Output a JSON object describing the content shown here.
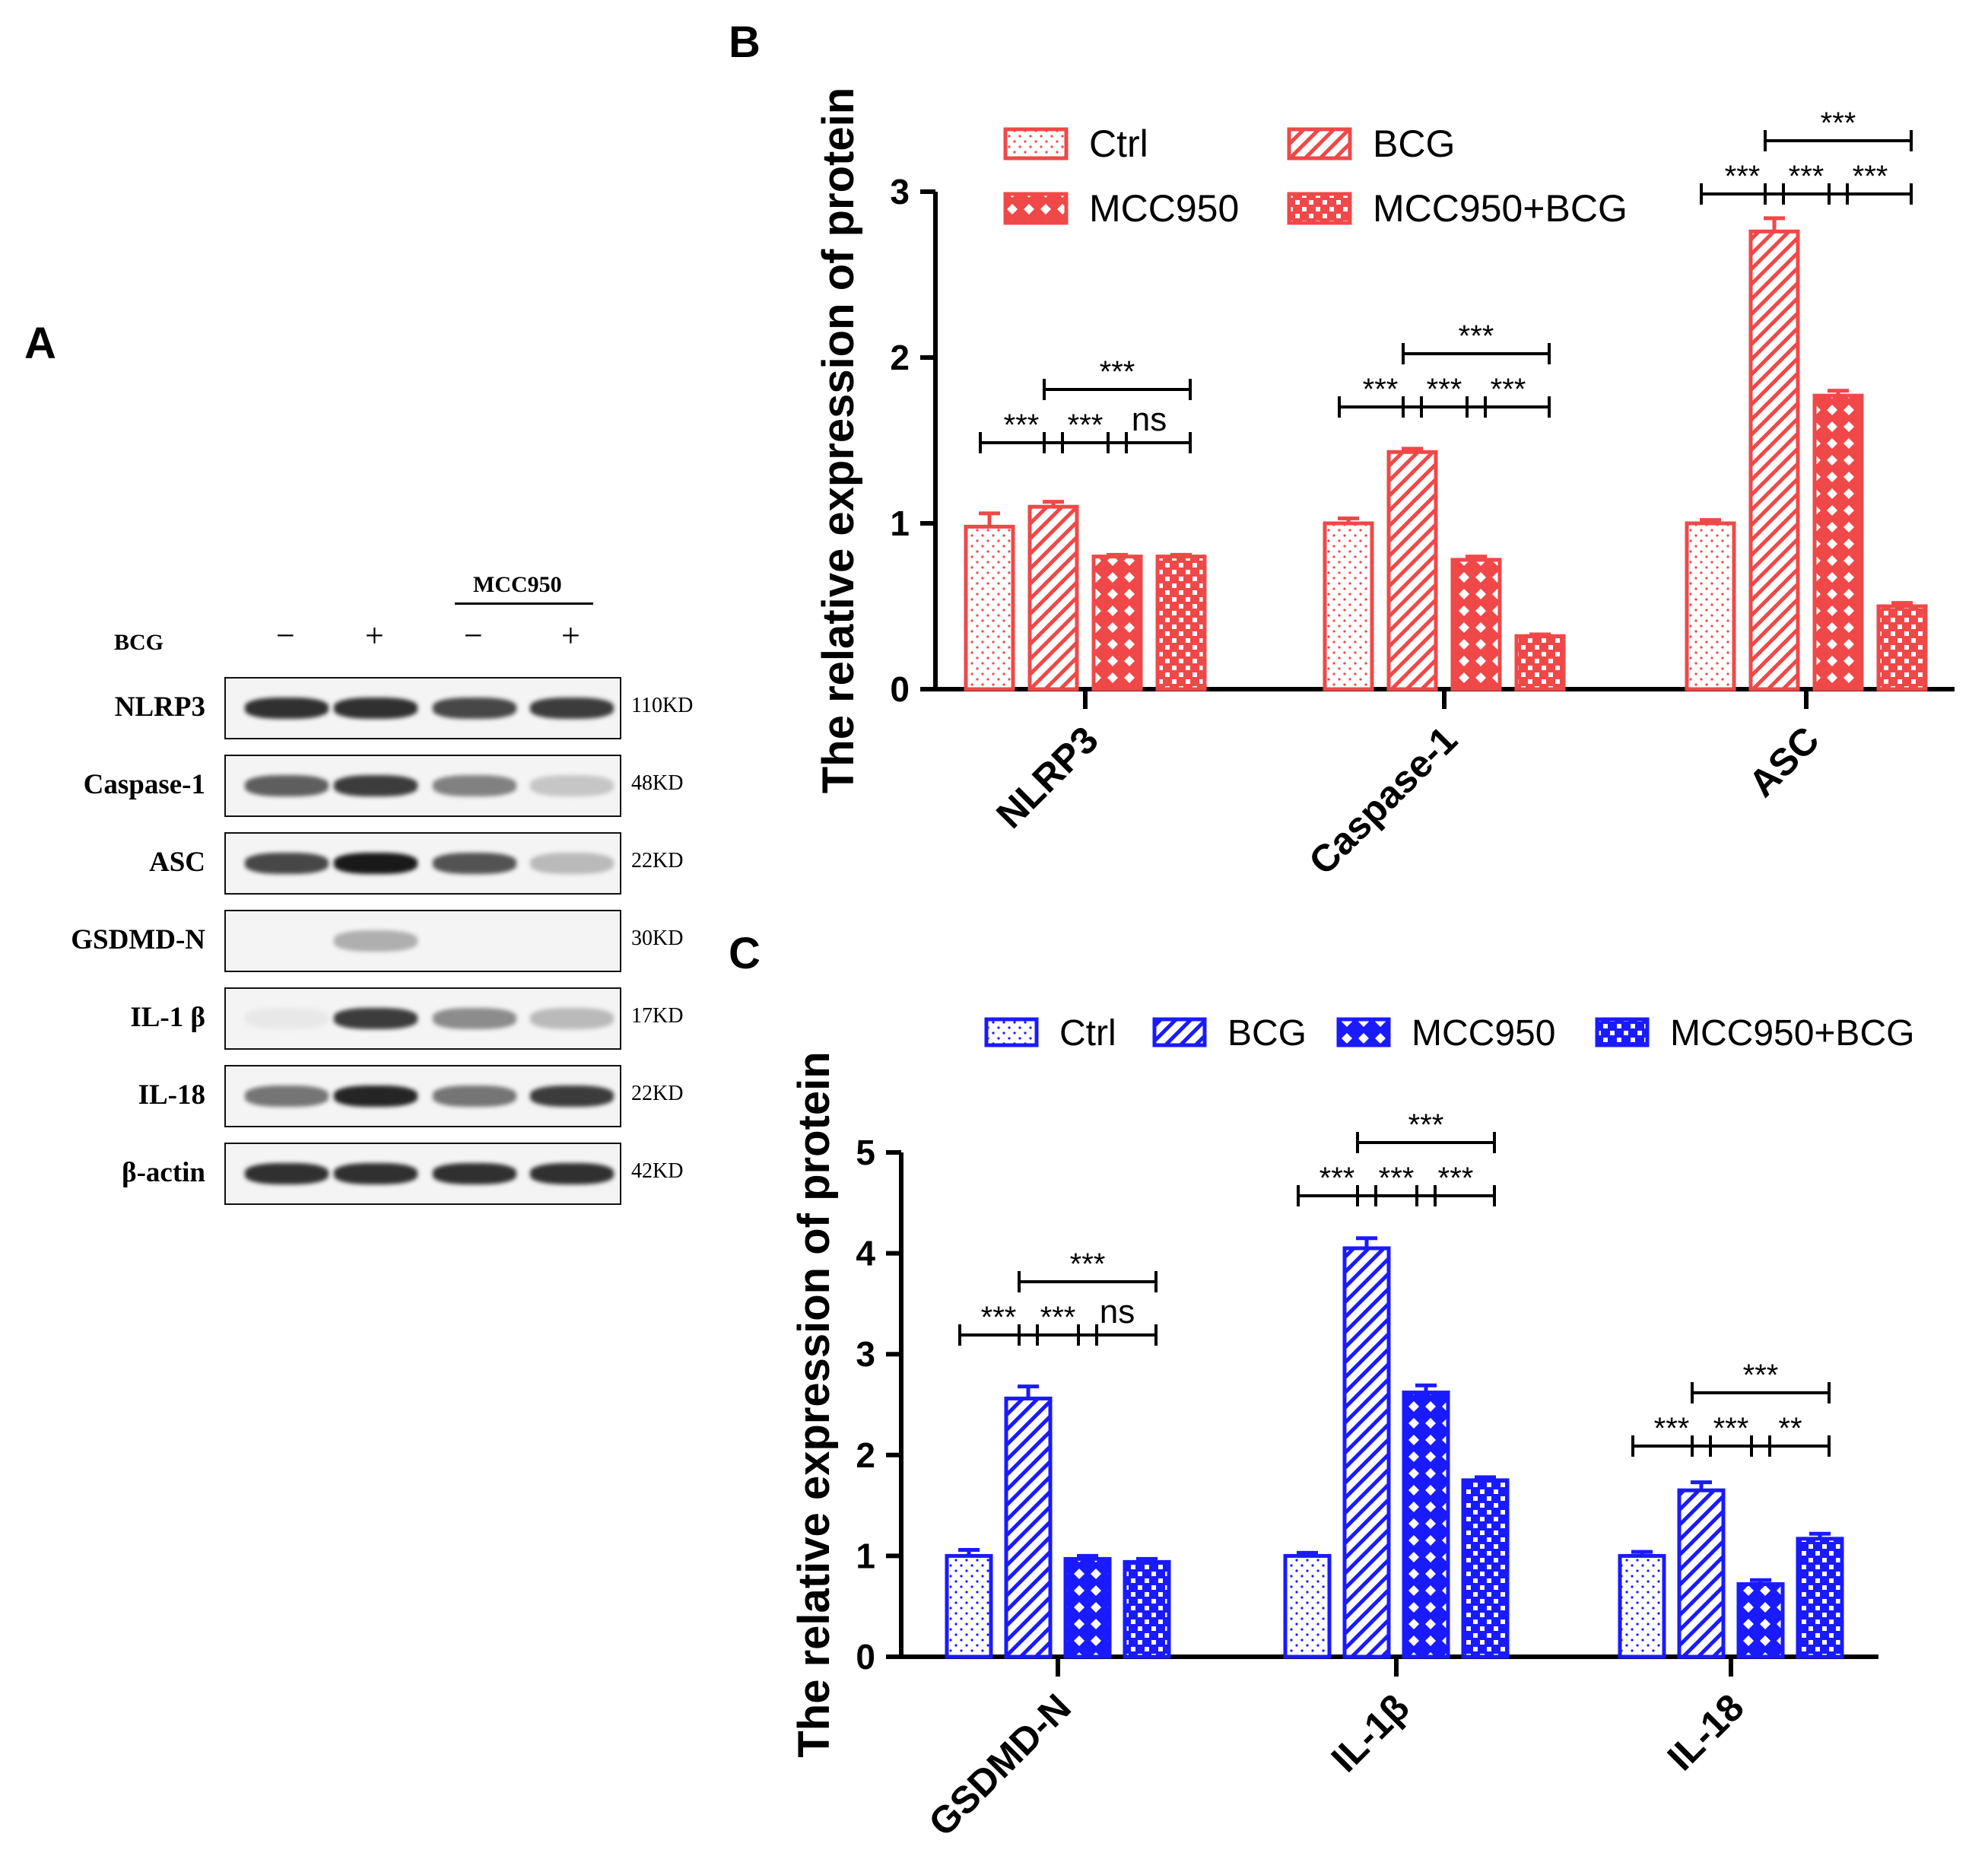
{
  "panels": {
    "a": "A",
    "b": "B",
    "c": "C"
  },
  "western_blot": {
    "treatment_label": "BCG",
    "inhibitor_label": "MCC950",
    "lane_signs": [
      "−",
      "+",
      "−",
      "+"
    ],
    "rows": [
      {
        "name": "NLRP3",
        "kd": "110KD",
        "intensity": [
          0.9,
          0.9,
          0.8,
          0.85
        ]
      },
      {
        "name": "Caspase-1",
        "kd": "48KD",
        "intensity": [
          0.7,
          0.85,
          0.55,
          0.25
        ]
      },
      {
        "name": "ASC",
        "kd": "22KD",
        "intensity": [
          0.8,
          1.0,
          0.75,
          0.3
        ]
      },
      {
        "name": "GSDMD-N",
        "kd": "30KD",
        "intensity": [
          0.0,
          0.35,
          0.0,
          0.0
        ]
      },
      {
        "name": "IL-1 β",
        "kd": "17KD",
        "intensity": [
          0.1,
          0.85,
          0.5,
          0.3
        ]
      },
      {
        "name": "IL-18",
        "kd": "22KD",
        "intensity": [
          0.6,
          0.95,
          0.6,
          0.85
        ]
      },
      {
        "name": "β-actin",
        "kd": "42KD",
        "intensity": [
          0.9,
          0.9,
          0.9,
          0.9
        ]
      }
    ]
  },
  "chart_data": [
    {
      "type": "bar",
      "panel": "B",
      "color": "#f04848",
      "ylabel": "The relative expression of protein",
      "ylim": [
        0,
        3
      ],
      "yticks": [
        "0",
        "1",
        "2",
        "3"
      ],
      "categories": [
        "NLRP3",
        "Caspase-1",
        "ASC"
      ],
      "legend": [
        "Ctrl",
        "BCG",
        "MCC950",
        "MCC950+BCG"
      ],
      "series": [
        {
          "name": "Ctrl",
          "values": [
            0.98,
            1.0,
            1.0
          ],
          "errors": [
            0.08,
            0.03,
            0.02
          ]
        },
        {
          "name": "BCG",
          "values": [
            1.1,
            1.43,
            2.76
          ],
          "errors": [
            0.03,
            0.02,
            0.08
          ]
        },
        {
          "name": "MCC950",
          "values": [
            0.8,
            0.78,
            1.77
          ],
          "errors": [
            0.01,
            0.02,
            0.03
          ]
        },
        {
          "name": "MCC950+BCG",
          "values": [
            0.8,
            0.32,
            0.5
          ],
          "errors": [
            0.01,
            0.01,
            0.02
          ]
        }
      ],
      "comparisons": [
        [
          {
            "from": 0,
            "to": 1,
            "level": 0,
            "label": "***"
          },
          {
            "from": 1,
            "to": 2,
            "level": 0,
            "label": "***"
          },
          {
            "from": 2,
            "to": 3,
            "level": 0,
            "label": "ns"
          },
          {
            "from": 1,
            "to": 3,
            "level": 1,
            "label": "***"
          }
        ],
        [
          {
            "from": 0,
            "to": 1,
            "level": 0,
            "label": "***"
          },
          {
            "from": 1,
            "to": 2,
            "level": 0,
            "label": "***"
          },
          {
            "from": 2,
            "to": 3,
            "level": 0,
            "label": "***"
          },
          {
            "from": 1,
            "to": 3,
            "level": 1,
            "label": "***"
          }
        ],
        [
          {
            "from": 0,
            "to": 1,
            "level": 0,
            "label": "***"
          },
          {
            "from": 1,
            "to": 2,
            "level": 0,
            "label": "***"
          },
          {
            "from": 2,
            "to": 3,
            "level": 0,
            "label": "***"
          },
          {
            "from": 1,
            "to": 3,
            "level": 1,
            "label": "***"
          }
        ]
      ]
    },
    {
      "type": "bar",
      "panel": "C",
      "color": "#1a1aff",
      "ylabel": "The relative expression of protein",
      "ylim": [
        0,
        5
      ],
      "yticks": [
        "0",
        "1",
        "2",
        "3",
        "4",
        "5"
      ],
      "categories": [
        "GSDMD-N",
        "IL-1β",
        "IL-18"
      ],
      "legend": [
        "Ctrl",
        "BCG",
        "MCC950",
        "MCC950+BCG"
      ],
      "series": [
        {
          "name": "Ctrl",
          "values": [
            1.0,
            1.0,
            1.0
          ],
          "errors": [
            0.06,
            0.03,
            0.04
          ]
        },
        {
          "name": "BCG",
          "values": [
            2.56,
            4.05,
            1.65
          ],
          "errors": [
            0.12,
            0.1,
            0.08
          ]
        },
        {
          "name": "MCC950",
          "values": [
            0.97,
            2.62,
            0.72
          ],
          "errors": [
            0.03,
            0.07,
            0.04
          ]
        },
        {
          "name": "MCC950+BCG",
          "values": [
            0.94,
            1.75,
            1.17
          ],
          "errors": [
            0.03,
            0.03,
            0.05
          ]
        }
      ],
      "comparisons": [
        [
          {
            "from": 0,
            "to": 1,
            "level": 0,
            "label": "***"
          },
          {
            "from": 1,
            "to": 2,
            "level": 0,
            "label": "***"
          },
          {
            "from": 2,
            "to": 3,
            "level": 0,
            "label": "ns"
          },
          {
            "from": 1,
            "to": 3,
            "level": 1,
            "label": "***"
          }
        ],
        [
          {
            "from": 0,
            "to": 1,
            "level": 0,
            "label": "***"
          },
          {
            "from": 1,
            "to": 2,
            "level": 0,
            "label": "***"
          },
          {
            "from": 2,
            "to": 3,
            "level": 0,
            "label": "***"
          },
          {
            "from": 1,
            "to": 3,
            "level": 1,
            "label": "***"
          }
        ],
        [
          {
            "from": 0,
            "to": 1,
            "level": 0,
            "label": "***"
          },
          {
            "from": 1,
            "to": 2,
            "level": 0,
            "label": "***"
          },
          {
            "from": 2,
            "to": 3,
            "level": 0,
            "label": "**"
          },
          {
            "from": 1,
            "to": 3,
            "level": 1,
            "label": "***"
          }
        ]
      ]
    }
  ]
}
